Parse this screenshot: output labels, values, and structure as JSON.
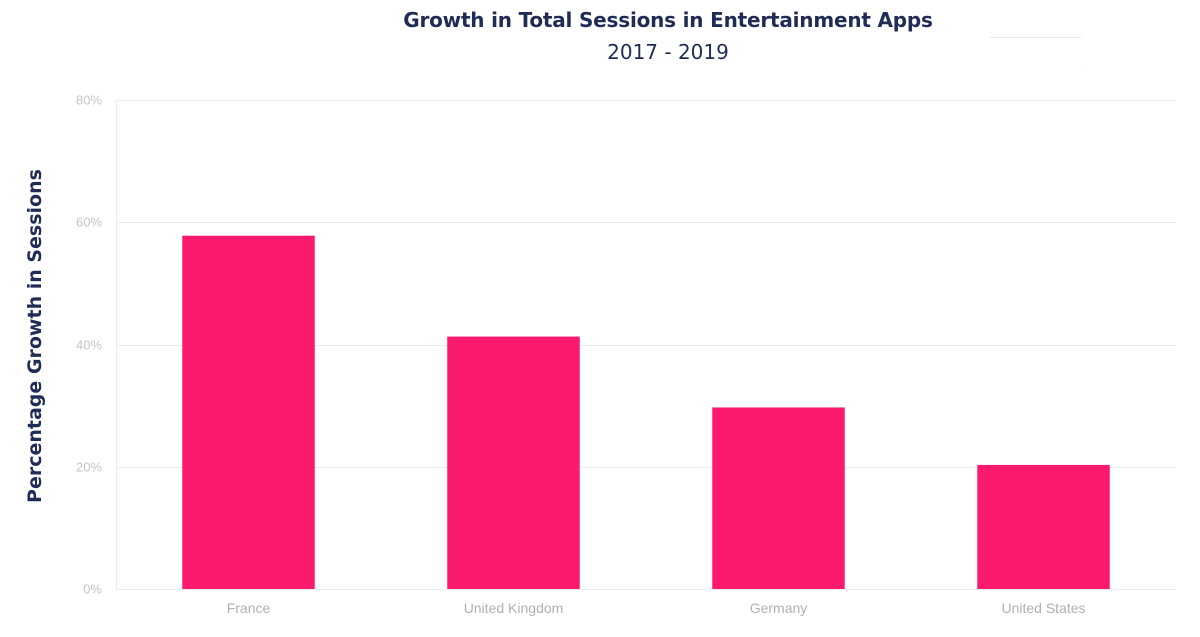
{
  "chart_data": {
    "type": "bar",
    "title": "Growth in Total Sessions in Entertainment Apps",
    "subtitle": "2017 - 2019",
    "ylabel": "Percentage Growth in Sessions",
    "xlabel": "",
    "categories": [
      "France",
      "United Kingdom",
      "Germany",
      "United States"
    ],
    "values": [
      57.8,
      41.3,
      29.7,
      20.3
    ],
    "ylim": [
      0,
      80
    ],
    "yticks": [
      0,
      20,
      40,
      60,
      80
    ],
    "ytick_labels": [
      "0%",
      "20%",
      "40%",
      "60%",
      "80%"
    ],
    "grid": true,
    "legend": "none",
    "bar_color": "#fc1a6f",
    "grid_color": "#ececef",
    "text_color": "#1f2d56"
  }
}
